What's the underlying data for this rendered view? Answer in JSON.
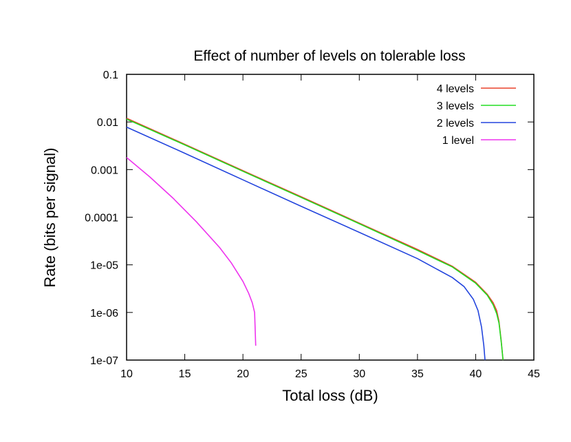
{
  "chart_data": {
    "type": "line",
    "title": "Effect of number of levels on tolerable loss",
    "xlabel": "Total loss (dB)",
    "ylabel": "Rate (bits per signal)",
    "xlim": [
      10,
      45
    ],
    "ylim": [
      1e-07,
      0.1
    ],
    "y_scale": "log",
    "x_ticks": [
      "10",
      "15",
      "20",
      "25",
      "30",
      "35",
      "40",
      "45"
    ],
    "y_ticks": [
      "0.1",
      "0.01",
      "0.001",
      "0.0001",
      "1e-05",
      "1e-06",
      "1e-07"
    ],
    "grid": false,
    "legend_position": "top-right",
    "series": [
      {
        "name": "4 levels",
        "color": "#e8402a",
        "x": [
          10,
          15,
          20,
          25,
          30,
          35,
          38,
          40,
          41,
          41.5,
          41.8,
          42,
          42.2,
          42.35
        ],
        "y": [
          0.012,
          0.0034,
          0.00095,
          0.00027,
          7.5e-05,
          2.1e-05,
          9.3e-06,
          4.3e-06,
          2.4e-06,
          1.6e-06,
          1.1e-06,
          6.5e-07,
          2.5e-07,
          1e-07
        ]
      },
      {
        "name": "3 levels",
        "color": "#22dd22",
        "x": [
          10,
          15,
          20,
          25,
          30,
          35,
          38,
          40,
          41,
          41.5,
          41.8,
          42,
          42.2,
          42.35
        ],
        "y": [
          0.0115,
          0.0033,
          0.00092,
          0.00026,
          7.3e-05,
          2e-05,
          9e-06,
          4.1e-06,
          2.3e-06,
          1.45e-06,
          9.5e-07,
          6e-07,
          2.4e-07,
          1e-07
        ]
      },
      {
        "name": "2 levels",
        "color": "#2244dd",
        "x": [
          10,
          15,
          20,
          25,
          30,
          35,
          38,
          39,
          39.8,
          40.2,
          40.5,
          40.7,
          40.8
        ],
        "y": [
          0.0078,
          0.0022,
          0.00061,
          0.00017,
          4.8e-05,
          1.35e-05,
          5.4e-06,
          3.5e-06,
          1.9e-06,
          1.1e-06,
          5e-07,
          2e-07,
          1e-07
        ]
      },
      {
        "name": "1 level",
        "color": "#ee33ee",
        "x": [
          10,
          12,
          14,
          16,
          18,
          19,
          20,
          20.5,
          20.8,
          21,
          21.1
        ],
        "y": [
          0.0018,
          0.0007,
          0.00025,
          8e-05,
          2.3e-05,
          1.1e-05,
          4.5e-06,
          2.5e-06,
          1.6e-06,
          1e-06,
          2e-07
        ]
      }
    ]
  }
}
